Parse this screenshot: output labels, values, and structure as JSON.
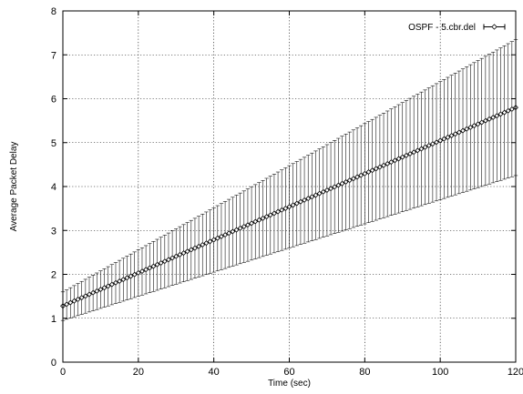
{
  "chart_data": {
    "type": "line",
    "xlabel": "Time (sec)",
    "ylabel": "Average Packet Delay",
    "xlim": [
      0,
      120
    ],
    "ylim": [
      0,
      8
    ],
    "xticks": [
      "0",
      "20",
      "40",
      "60",
      "80",
      "100",
      "120"
    ],
    "yticks": [
      "0",
      "1",
      "2",
      "3",
      "4",
      "5",
      "6",
      "7",
      "8"
    ],
    "grid": true,
    "legend_position": "top-right",
    "error_bars": true,
    "series": [
      {
        "name": "OSPF - 5.cbr.del",
        "x_start": 0,
        "x_end": 120,
        "x_step": 1,
        "y_start": 1.28,
        "y_end": 5.8,
        "lower_start": 0.95,
        "lower_end": 4.25,
        "upper_start": 1.6,
        "upper_end": 7.35
      }
    ]
  }
}
